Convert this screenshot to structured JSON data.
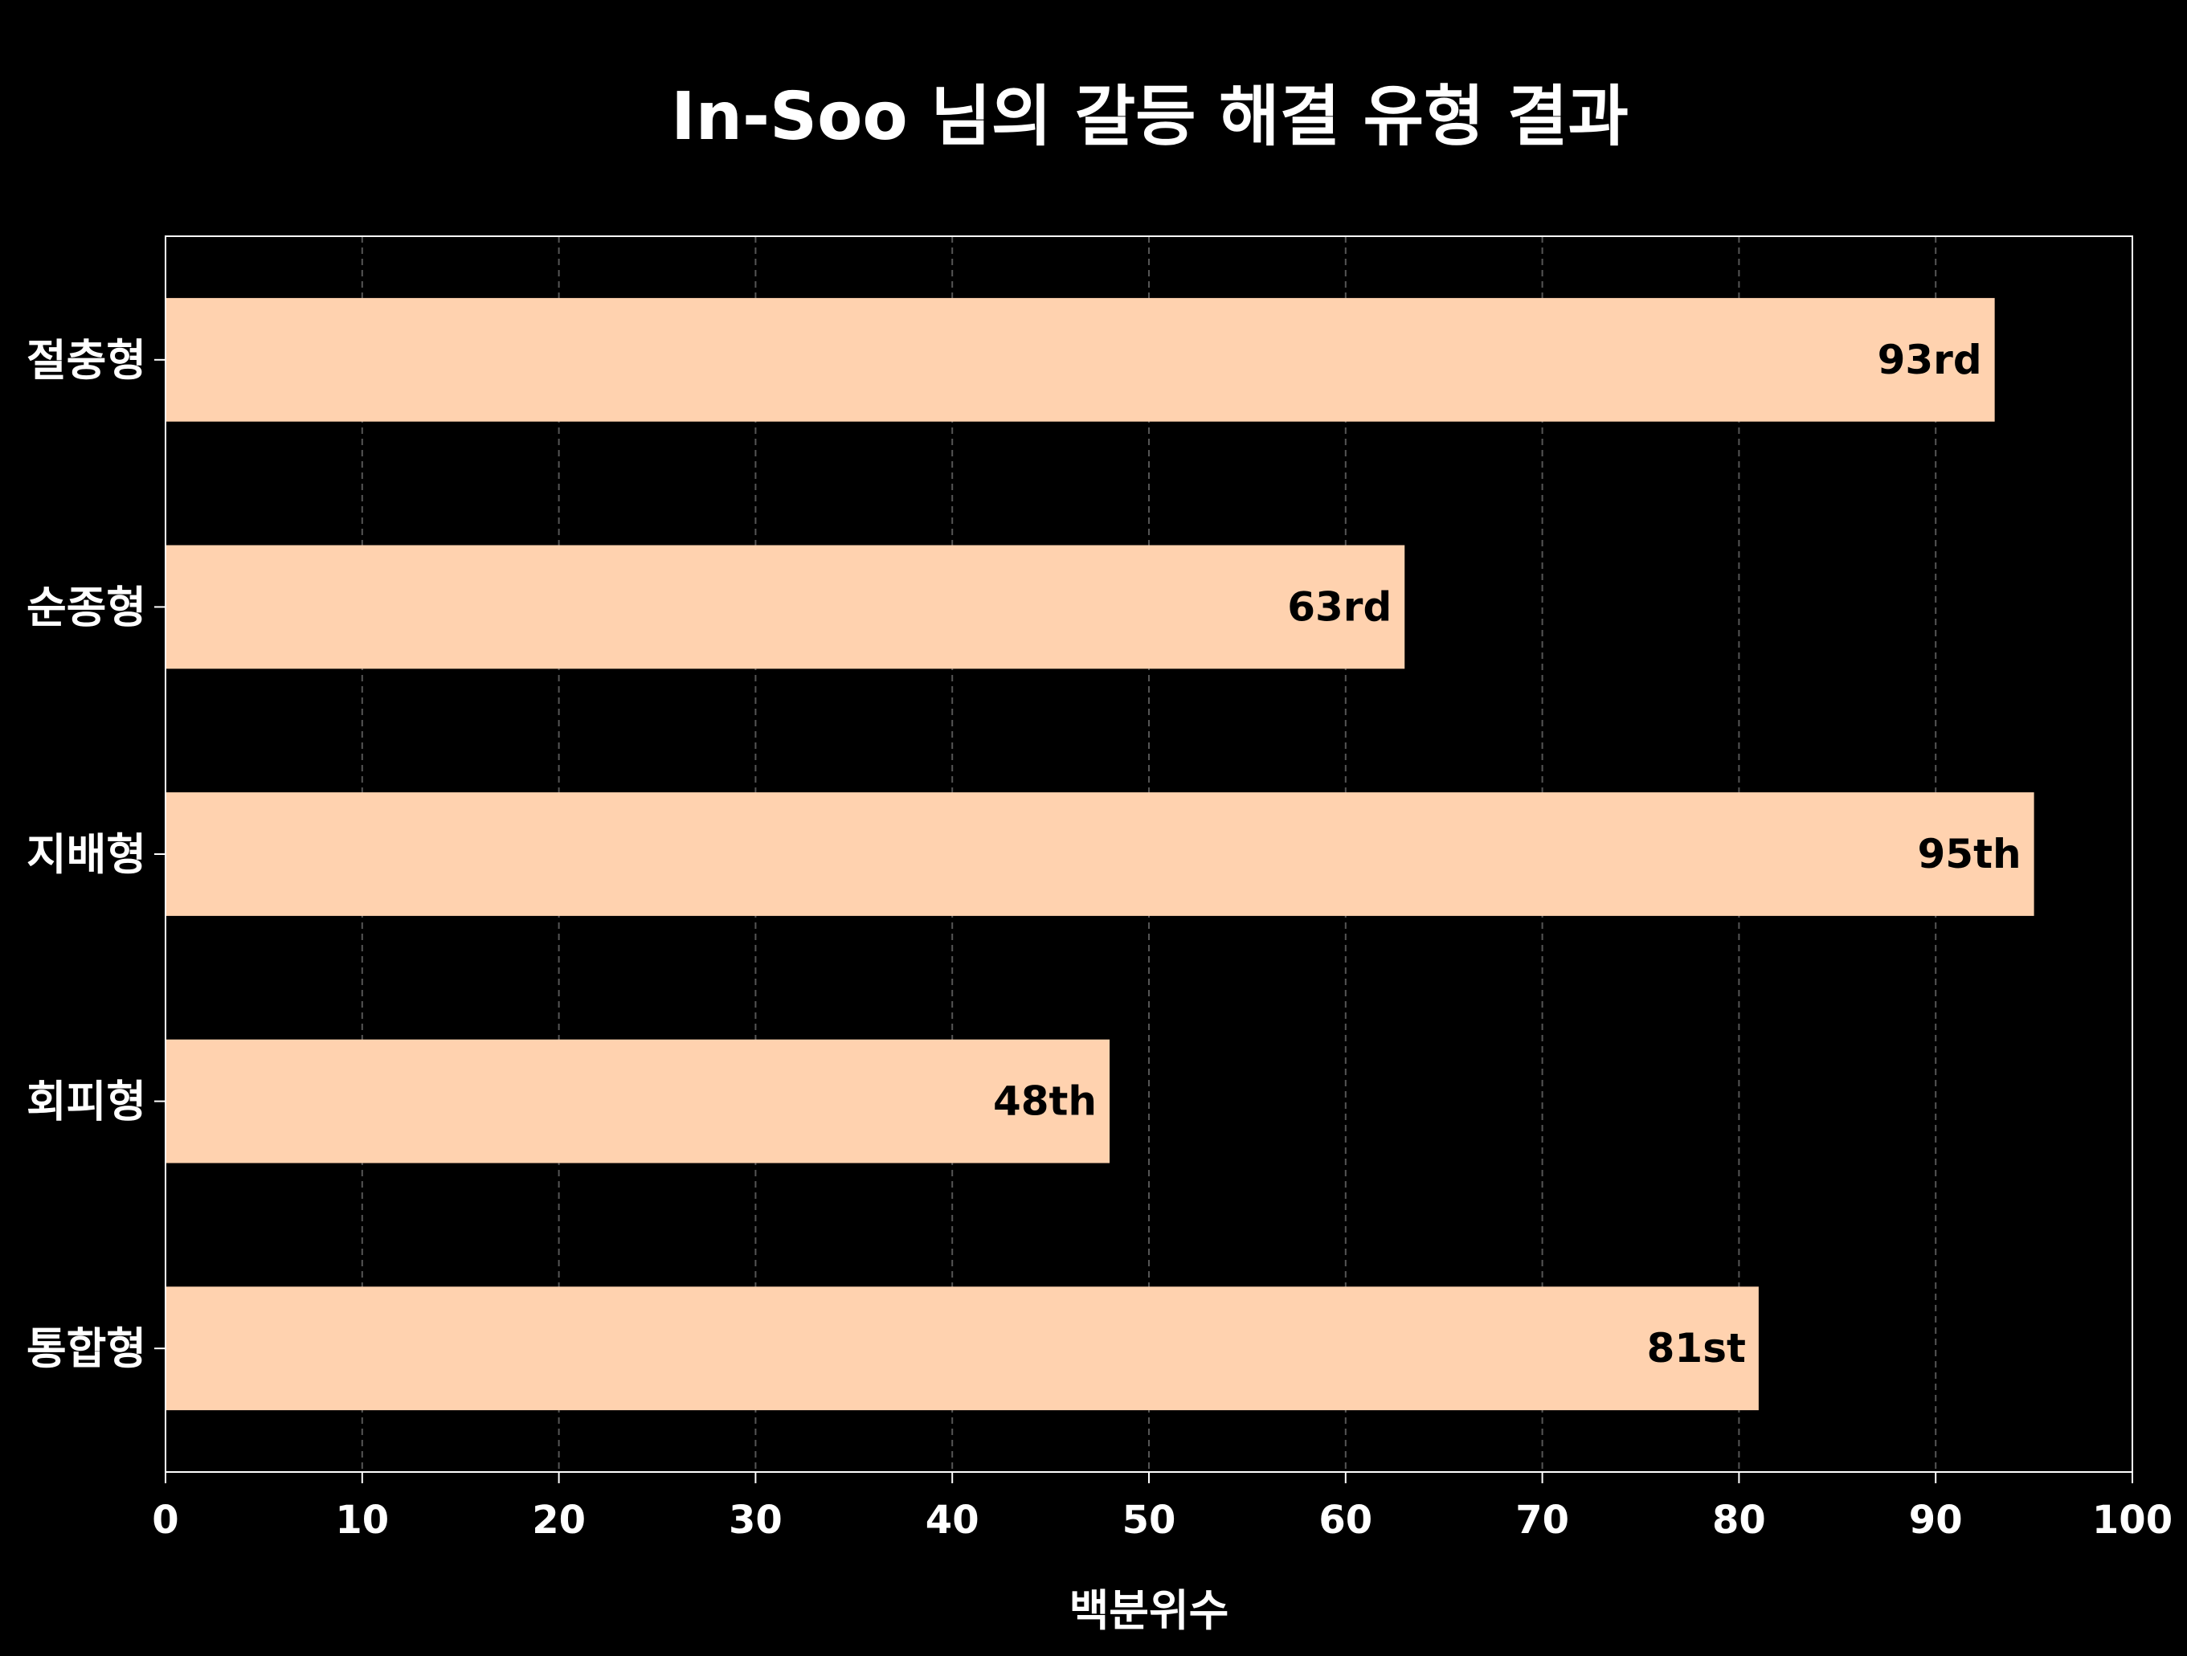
{
  "chart_data": {
    "type": "bar",
    "orientation": "horizontal",
    "title": "In-Soo 님의 갈등 해결 유형 결과",
    "xlabel": "백분위수",
    "ylabel": "",
    "xlim": [
      0,
      100
    ],
    "x_ticks": [
      "0",
      "10",
      "20",
      "30",
      "40",
      "50",
      "60",
      "70",
      "80",
      "90",
      "100"
    ],
    "grid": "vertical dashed",
    "categories": [
      "절충형",
      "순종형",
      "지배형",
      "회피형",
      "통합형"
    ],
    "values": [
      93,
      63,
      95,
      48,
      81
    ],
    "bar_labels": [
      "93rd",
      "63rd",
      "95th",
      "48th",
      "81st"
    ],
    "colors": {
      "background": "#000000",
      "bar": "#FFD2AF",
      "text": "#FFFFFF",
      "bar_label": "#000000",
      "grid": "#555555",
      "axis": "#FFFFFF"
    }
  }
}
